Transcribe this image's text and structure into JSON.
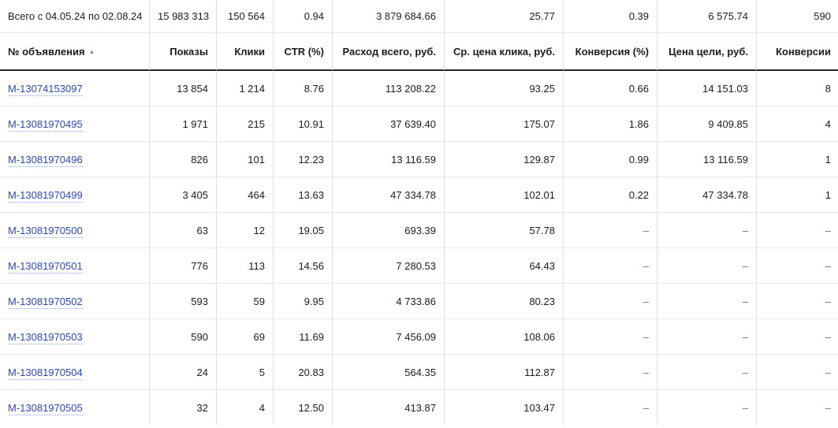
{
  "report": {
    "total_row": {
      "label": "Всего с 04.05.24 по 02.08.24",
      "values": [
        "15 983 313",
        "150 564",
        "0.94",
        "3 879 684.66",
        "25.77",
        "0.39",
        "6 575.74",
        "590"
      ]
    },
    "columns": [
      {
        "label": "№ объявления",
        "sorted": "asc"
      },
      {
        "label": "Показы"
      },
      {
        "label": "Клики"
      },
      {
        "label": "CTR (%)"
      },
      {
        "label": "Расход всего, руб."
      },
      {
        "label": "Ср. цена клика, руб."
      },
      {
        "label": "Конверсия (%)"
      },
      {
        "label": "Цена цели, руб."
      },
      {
        "label": "Конверсии"
      }
    ],
    "rows": [
      {
        "id": "M-13074153097",
        "values": [
          "13 854",
          "1 214",
          "8.76",
          "113 208.22",
          "93.25",
          "0.66",
          "14 151.03",
          "8"
        ]
      },
      {
        "id": "M-13081970495",
        "values": [
          "1 971",
          "215",
          "10.91",
          "37 639.40",
          "175.07",
          "1.86",
          "9 409.85",
          "4"
        ]
      },
      {
        "id": "M-13081970496",
        "values": [
          "826",
          "101",
          "12.23",
          "13 116.59",
          "129.87",
          "0.99",
          "13 116.59",
          "1"
        ]
      },
      {
        "id": "M-13081970499",
        "values": [
          "3 405",
          "464",
          "13.63",
          "47 334.78",
          "102.01",
          "0.22",
          "47 334.78",
          "1"
        ]
      },
      {
        "id": "M-13081970500",
        "values": [
          "63",
          "12",
          "19.05",
          "693.39",
          "57.78",
          "–",
          "–",
          "–"
        ]
      },
      {
        "id": "M-13081970501",
        "values": [
          "776",
          "113",
          "14.56",
          "7 280.53",
          "64.43",
          "–",
          "–",
          "–"
        ]
      },
      {
        "id": "M-13081970502",
        "values": [
          "593",
          "59",
          "9.95",
          "4 733.86",
          "80.23",
          "–",
          "–",
          "–"
        ]
      },
      {
        "id": "M-13081970503",
        "values": [
          "590",
          "69",
          "11.69",
          "7 456.09",
          "108.06",
          "–",
          "–",
          "–"
        ]
      },
      {
        "id": "M-13081970504",
        "values": [
          "24",
          "5",
          "20.83",
          "564.35",
          "112.87",
          "–",
          "–",
          "–"
        ]
      },
      {
        "id": "M-13081970505",
        "values": [
          "32",
          "4",
          "12.50",
          "413.87",
          "103.47",
          "–",
          "–",
          "–"
        ]
      }
    ]
  },
  "icons": {
    "sort_ascending": "▲"
  },
  "colors": {
    "link_blue": "#2b46c8",
    "header_border": "#262626",
    "row_border": "#e7e7e7",
    "dash_gray": "#6f6f6f"
  }
}
